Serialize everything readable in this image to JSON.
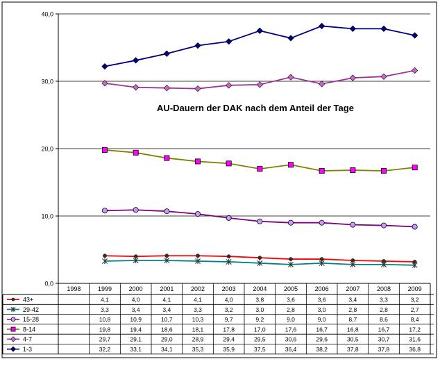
{
  "chart_data": {
    "type": "line",
    "title": "AU-Dauern der DAK nach dem Anteil der Tage",
    "categories": [
      "1998",
      "1999",
      "2000",
      "2001",
      "2002",
      "2003",
      "2004",
      "2005",
      "2006",
      "2007",
      "2008",
      "2009"
    ],
    "ylim": [
      0,
      40
    ],
    "yticks": [
      "0,0",
      "10,0",
      "20,0",
      "30,0",
      "40,0"
    ],
    "ytick_values": [
      0,
      10,
      20,
      30,
      40
    ],
    "grid": "horizontal",
    "legend_placement": "data-table-below",
    "series": [
      {
        "name": "43+",
        "color": "#ff0000",
        "line_color": "#ff0000",
        "marker": "dot",
        "marker_color": "#333333",
        "values": [
          null,
          4.1,
          4.0,
          4.1,
          4.1,
          4.0,
          3.8,
          3.6,
          3.6,
          3.4,
          3.3,
          3.2
        ],
        "labels": [
          "",
          "4,1",
          "4,0",
          "4,1",
          "4,1",
          "4,0",
          "3,8",
          "3,6",
          "3,6",
          "3,4",
          "3,3",
          "3,2"
        ]
      },
      {
        "name": "29-42",
        "color": "#008080",
        "line_color": "#008080",
        "marker": "asterisk",
        "marker_color": "#333333",
        "values": [
          null,
          3.3,
          3.4,
          3.4,
          3.3,
          3.2,
          3.0,
          2.8,
          3.0,
          2.8,
          2.8,
          2.7
        ],
        "labels": [
          "",
          "3,3",
          "3,4",
          "3,4",
          "3,3",
          "3,2",
          "3,0",
          "2,8",
          "3,0",
          "2,8",
          "2,8",
          "2,7"
        ]
      },
      {
        "name": "15-28",
        "color": "#800080",
        "line_color": "#800080",
        "marker": "circle",
        "marker_color": "#cc99ff",
        "values": [
          null,
          10.8,
          10.9,
          10.7,
          10.3,
          9.7,
          9.2,
          9.0,
          9.0,
          8.7,
          8.6,
          8.4
        ],
        "labels": [
          "",
          "10,8",
          "10,9",
          "10,7",
          "10,3",
          "9,7",
          "9,2",
          "9,0",
          "9,0",
          "8,7",
          "8,6",
          "8,4"
        ]
      },
      {
        "name": "8-14",
        "color": "#808000",
        "line_color": "#808000",
        "marker": "square",
        "marker_color": "#ff00ff",
        "values": [
          null,
          19.8,
          19.4,
          18.6,
          18.1,
          17.8,
          17.0,
          17.6,
          16.7,
          16.8,
          16.7,
          17.2
        ],
        "labels": [
          "",
          "19,8",
          "19,4",
          "18,6",
          "18,1",
          "17,8",
          "17,0",
          "17,6",
          "16,7",
          "16,8",
          "16,7",
          "17,2"
        ]
      },
      {
        "name": "4-7",
        "color": "#993399",
        "line_color": "#993399",
        "marker": "diamond",
        "marker_color": "#cc66cc",
        "values": [
          null,
          29.7,
          29.1,
          29.0,
          28.9,
          29.4,
          29.5,
          30.6,
          29.6,
          30.5,
          30.7,
          31.6
        ],
        "labels": [
          "",
          "29,7",
          "29,1",
          "29,0",
          "28,9",
          "29,4",
          "29,5",
          "30,6",
          "29,6",
          "30,5",
          "30,7",
          "31,6"
        ]
      },
      {
        "name": "1-3",
        "color": "#000080",
        "line_color": "#000080",
        "marker": "diamond",
        "marker_color": "#000080",
        "values": [
          null,
          32.2,
          33.1,
          34.1,
          35.3,
          35.9,
          37.5,
          36.4,
          38.2,
          37.8,
          37.8,
          36.8
        ],
        "labels": [
          "",
          "32,2",
          "33,1",
          "34,1",
          "35,3",
          "35,9",
          "37,5",
          "36,4",
          "38,2",
          "37,8",
          "37,8",
          "36,8"
        ]
      }
    ]
  }
}
